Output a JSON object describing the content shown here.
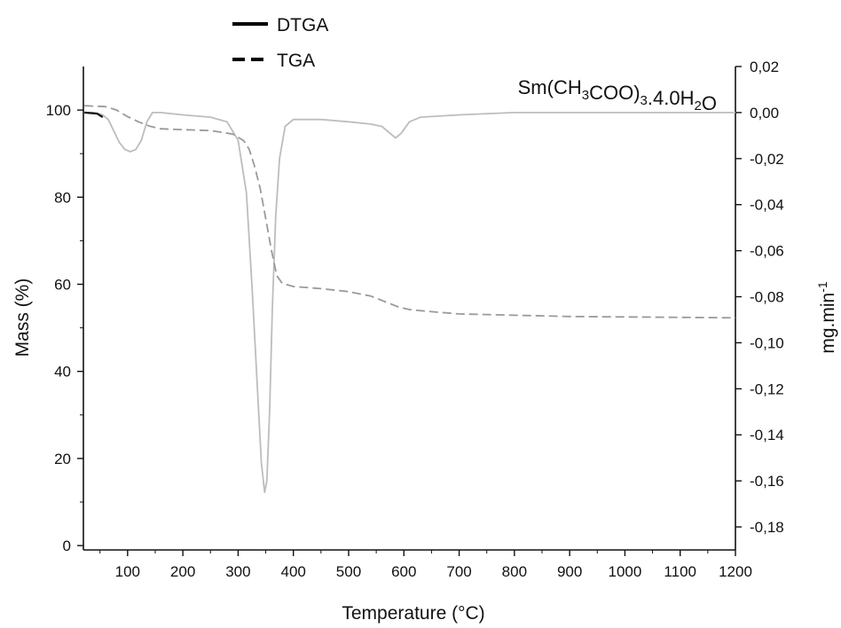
{
  "chart_data": {
    "type": "line",
    "annotation": "Sm(CH3COO)3.4.0H2O",
    "xlabel": "Temperature (°C)",
    "ylabel_left": "Mass (%)",
    "ylabel_right": "mg.min-1",
    "xlim": [
      20,
      1200
    ],
    "ylim_left": [
      -1,
      110
    ],
    "ylim_right": [
      -0.19,
      0.02
    ],
    "x_ticks": [
      100,
      200,
      300,
      400,
      500,
      600,
      700,
      800,
      900,
      1000,
      1100,
      1200
    ],
    "x_tick_labels": [
      "100",
      "200",
      "300",
      "400",
      "500",
      "600",
      "700",
      "800",
      "900",
      "1000",
      "1100",
      "1200"
    ],
    "y_left_ticks": [
      0,
      20,
      40,
      60,
      80,
      100
    ],
    "y_left_tick_labels": [
      "0",
      "20",
      "40",
      "60",
      "80",
      "100"
    ],
    "y_right_ticks": [
      0.02,
      0.0,
      -0.02,
      -0.04,
      -0.06,
      -0.08,
      -0.1,
      -0.12,
      -0.14,
      -0.16,
      -0.18
    ],
    "y_right_tick_labels": [
      "0,02",
      "0,00",
      "-0,02",
      "-0,04",
      "-0,06",
      "-0,08",
      "-0,10",
      "-0,12",
      "-0,14",
      "-0,16",
      "-0,18"
    ],
    "legend_position": "top-left",
    "grid": false,
    "series": [
      {
        "name": "DTGA",
        "axis": "right",
        "style": "solid",
        "color": "#bdbdbd",
        "x": [
          22,
          40,
          55,
          65,
          75,
          85,
          95,
          105,
          115,
          125,
          135,
          145,
          160,
          200,
          250,
          280,
          300,
          315,
          325,
          335,
          342,
          348,
          352,
          357,
          362,
          368,
          375,
          385,
          400,
          450,
          500,
          540,
          560,
          575,
          585,
          595,
          610,
          630,
          700,
          800,
          900,
          1000,
          1100,
          1200
        ],
        "y": [
          0.0,
          0.0,
          -0.001,
          -0.003,
          -0.008,
          -0.013,
          -0.016,
          -0.017,
          -0.016,
          -0.012,
          -0.004,
          0.0,
          0.0,
          -0.001,
          -0.002,
          -0.004,
          -0.012,
          -0.035,
          -0.075,
          -0.12,
          -0.152,
          -0.165,
          -0.16,
          -0.13,
          -0.085,
          -0.045,
          -0.02,
          -0.006,
          -0.003,
          -0.003,
          -0.004,
          -0.005,
          -0.006,
          -0.009,
          -0.011,
          -0.009,
          -0.004,
          -0.002,
          -0.001,
          0.0,
          0.0,
          0.0,
          0.0,
          0.0
        ]
      },
      {
        "name": "TGA",
        "axis": "left",
        "style": "dashed",
        "color": "#9a9a9a",
        "x": [
          22,
          60,
          80,
          100,
          120,
          140,
          160,
          200,
          250,
          290,
          310,
          320,
          330,
          340,
          350,
          360,
          370,
          380,
          400,
          450,
          500,
          540,
          570,
          590,
          610,
          650,
          700,
          800,
          900,
          1000,
          1100,
          1200
        ],
        "y": [
          101,
          100.8,
          100,
          98.5,
          97.3,
          96.3,
          95.7,
          95.5,
          95.3,
          94.5,
          93,
          91,
          87,
          82,
          75,
          68,
          62,
          60.2,
          59.5,
          59,
          58.3,
          57.3,
          55.8,
          54.8,
          54.2,
          53.7,
          53.2,
          52.9,
          52.6,
          52.5,
          52.4,
          52.3
        ]
      }
    ]
  }
}
